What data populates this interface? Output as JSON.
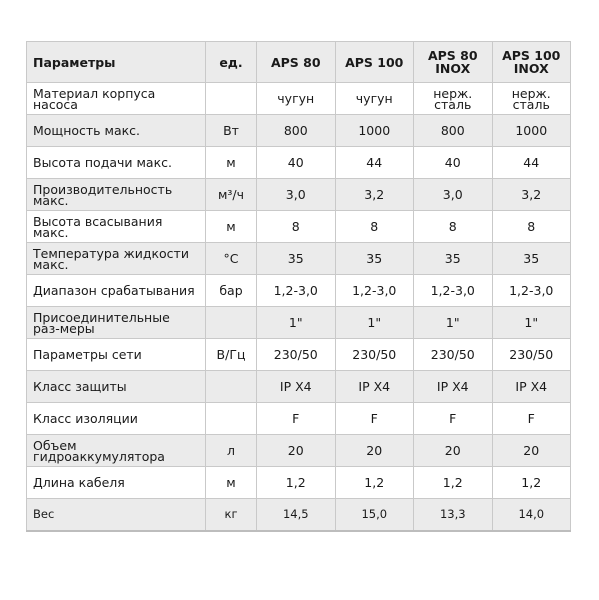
{
  "header": {
    "param": "Параметры",
    "unit": "ед.",
    "models": [
      "APS 80",
      "APS 100",
      "APS 80 INOX",
      "APS 100 INOX"
    ]
  },
  "rows": [
    {
      "param": "Материал корпуса насоса",
      "unit": "",
      "values": [
        "чугун",
        "чугун",
        "нерж. сталь",
        "нерж. сталь"
      ]
    },
    {
      "param": "Мощность макс.",
      "unit": "Вт",
      "values": [
        "800",
        "1000",
        "800",
        "1000"
      ]
    },
    {
      "param": "Высота подачи макс.",
      "unit": "м",
      "values": [
        "40",
        "44",
        "40",
        "44"
      ]
    },
    {
      "param": "Производительность макс.",
      "unit": "м³/ч",
      "values": [
        "3,0",
        "3,2",
        "3,0",
        "3,2"
      ]
    },
    {
      "param": "Высота всасывания макс.",
      "unit": "м",
      "values": [
        "8",
        "8",
        "8",
        "8"
      ]
    },
    {
      "param": "Температура жидкости макс.",
      "unit": "°С",
      "values": [
        "35",
        "35",
        "35",
        "35"
      ]
    },
    {
      "param": "Диапазон срабатывания",
      "unit": "бар",
      "values": [
        "1,2-3,0",
        "1,2-3,0",
        "1,2-3,0",
        "1,2-3,0"
      ]
    },
    {
      "param": "Присоединительные раз-меры",
      "unit": "",
      "values": [
        "1\"",
        "1\"",
        "1\"",
        "1\""
      ]
    },
    {
      "param": "Параметры сети",
      "unit": "В/Гц",
      "values": [
        "230/50",
        "230/50",
        "230/50",
        "230/50"
      ]
    },
    {
      "param": "Класс защиты",
      "unit": "",
      "values": [
        "IP X4",
        "IP X4",
        "IP X4",
        "IP X4"
      ]
    },
    {
      "param": "Класс изоляции",
      "unit": "",
      "values": [
        "F",
        "F",
        "F",
        "F"
      ]
    },
    {
      "param": "Объем гидроаккумулятора",
      "unit": "л",
      "values": [
        "20",
        "20",
        "20",
        "20"
      ]
    },
    {
      "param": "Длина кабеля",
      "unit": "м",
      "values": [
        "1,2",
        "1,2",
        "1,2",
        "1,2"
      ]
    },
    {
      "param": "Вес",
      "unit": "кг",
      "values": [
        "14,5",
        "15,0",
        "13,3",
        "14,0"
      ]
    }
  ]
}
